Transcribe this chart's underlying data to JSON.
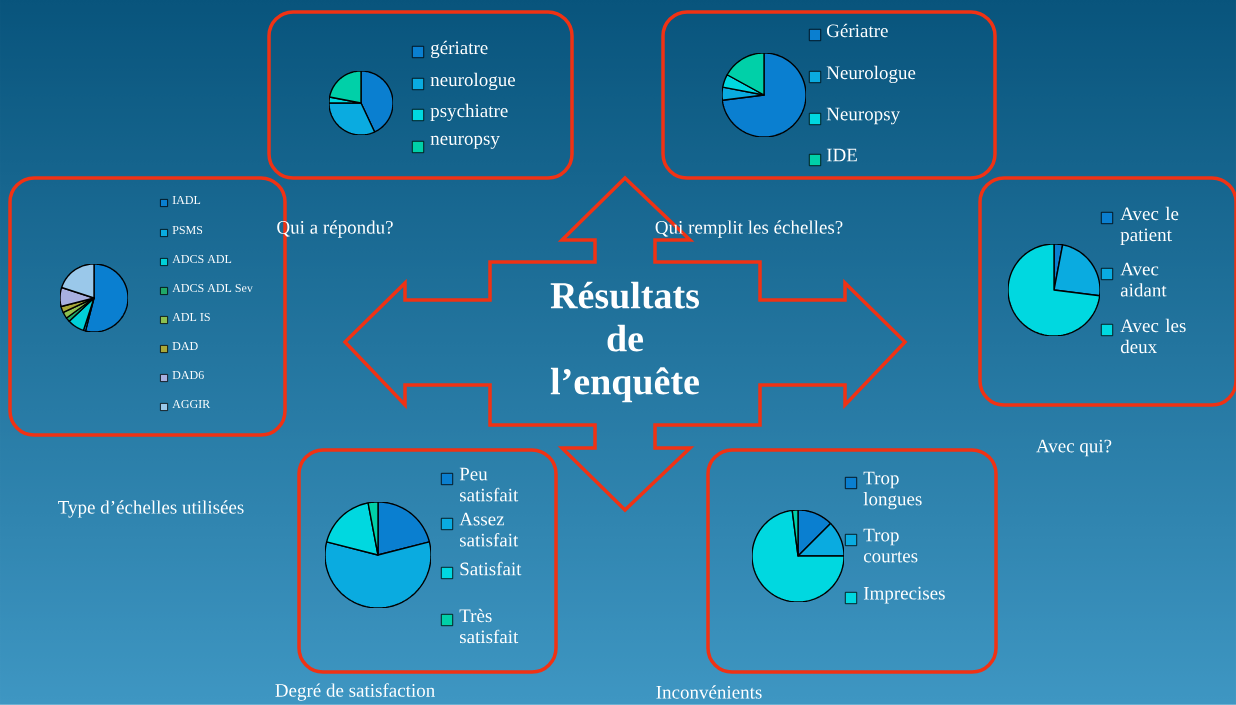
{
  "chart_data": [
    {
      "type": "pie",
      "title": "Qui a répondu?",
      "legend": "right",
      "categories": [
        "gériatre",
        "neurologue",
        "psychiatre",
        "neuropsy"
      ],
      "values": [
        43,
        32,
        3,
        22
      ],
      "colors": [
        "#0a7fd0",
        "#0aabe0",
        "#00d8e0",
        "#00d0a8"
      ]
    },
    {
      "type": "pie",
      "title": "Qui remplit les échelles?",
      "legend": "right",
      "categories": [
        "Gériatre",
        "Neurologue",
        "Neuropsy",
        "IDE"
      ],
      "values": [
        73,
        5,
        5,
        17
      ],
      "colors": [
        "#0a7fd0",
        "#0aabe0",
        "#00d8e0",
        "#00d0a8"
      ]
    },
    {
      "type": "pie",
      "title": "Type d’échelles utilisées",
      "legend": "right",
      "categories": [
        "IADL",
        "PSMS",
        "ADCS ADL",
        "ADCS ADL Sev",
        "ADL IS",
        "DAD",
        "DAD6",
        "AGGIR"
      ],
      "values": [
        54,
        1,
        8,
        2,
        3,
        3,
        9,
        20
      ],
      "colors": [
        "#0a7fd0",
        "#0aabe0",
        "#00d0d8",
        "#20a868",
        "#8cc050",
        "#a8a838",
        "#a8b0e0",
        "#9ac8ea"
      ]
    },
    {
      "type": "pie",
      "title": "Avec qui?",
      "legend": "right",
      "categories": [
        "Avec le patient",
        "Avec aidant",
        "Avec les deux"
      ],
      "values": [
        3,
        24,
        73
      ],
      "colors": [
        "#0a7fd0",
        "#0aabe0",
        "#00d8e0"
      ]
    },
    {
      "type": "pie",
      "title": "Degré de satisfaction",
      "legend": "right",
      "categories": [
        "Peu satisfait",
        "Assez satisfait",
        "Satisfait",
        "Très satisfait"
      ],
      "values": [
        21,
        58,
        18,
        3
      ],
      "colors": [
        "#0a7fd0",
        "#0aabe0",
        "#00d8e0",
        "#00d0a8"
      ]
    },
    {
      "type": "pie",
      "title": "Inconvénients",
      "legend": "right",
      "categories": [
        "Trop longues",
        "Trop courtes",
        "Imprecises",
        null
      ],
      "values": [
        12.5,
        12.5,
        73,
        2
      ],
      "colors": [
        "#0a7fd0",
        "#0aabe0",
        "#00d8e0",
        "#00d0a8"
      ]
    },
    {
      "type": "other",
      "title": "Résultats de l’enquête"
    }
  ]
}
